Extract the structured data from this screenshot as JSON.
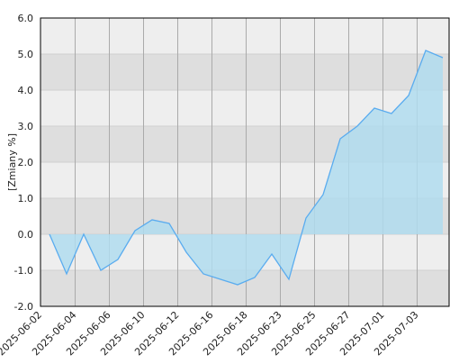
{
  "chart_data": {
    "type": "area",
    "y_label": "[Zmiany %]",
    "categories": [
      "2025-06-02",
      null,
      "2025-06-04",
      null,
      "2025-06-06",
      null,
      "2025-06-10",
      null,
      "2025-06-12",
      null,
      "2025-06-16",
      null,
      "2025-06-18",
      null,
      "2025-06-23",
      null,
      "2025-06-25",
      null,
      "2025-06-27",
      null,
      "2025-07-01",
      null,
      "2025-07-03",
      null
    ],
    "values": [
      0.0,
      -1.1,
      0.0,
      -1.0,
      -0.7,
      0.1,
      0.4,
      0.3,
      -0.5,
      -1.1,
      -1.25,
      -1.4,
      -1.2,
      -0.55,
      -1.25,
      0.45,
      1.1,
      2.65,
      3.0,
      3.5,
      3.35,
      3.85,
      5.1,
      4.9
    ],
    "color": "#5aacef",
    "fill": "#b0dcee",
    "ylim": [
      -2,
      6
    ],
    "yticks": [
      {
        "value": -2,
        "label": "-2.0"
      },
      {
        "value": -1,
        "label": "-1.0"
      },
      {
        "value": 0,
        "label": "0.0"
      },
      {
        "value": 1,
        "label": "1.0"
      },
      {
        "value": 2,
        "label": "2.0"
      },
      {
        "value": 3,
        "label": "3.0"
      },
      {
        "value": 4,
        "label": "4.0"
      },
      {
        "value": 5,
        "label": "5.0"
      },
      {
        "value": 6,
        "label": "6.0"
      }
    ],
    "grid": true
  }
}
